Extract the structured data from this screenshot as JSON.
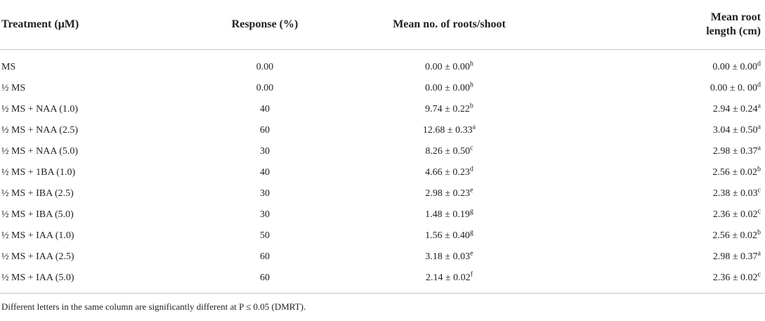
{
  "headers": {
    "treatment": "Treatment (μM)",
    "response": "Response (%)",
    "roots": "Mean no. of roots/shoot",
    "length_line1": "Mean root",
    "length_line2": "length (cm)"
  },
  "rows": [
    {
      "treatment": "MS",
      "response": "0.00",
      "roots": "0.00 ± 0.00",
      "roots_sup": "h",
      "length": "0.00 ± 0.00",
      "length_sup": "d"
    },
    {
      "treatment": "½ MS",
      "response": "0.00",
      "roots": "0.00 ± 0.00",
      "roots_sup": "h",
      "length": "0.00 ± 0. 00",
      "length_sup": "d"
    },
    {
      "treatment": "½ MS + NAA (1.0)",
      "response": "40",
      "roots": "9.74 ± 0.22",
      "roots_sup": "b",
      "length": "2.94 ± 0.24",
      "length_sup": "a"
    },
    {
      "treatment": "½ MS + NAA (2.5)",
      "response": "60",
      "roots": "12.68 ± 0.33",
      "roots_sup": "a",
      "length": "3.04 ± 0.50",
      "length_sup": "a"
    },
    {
      "treatment": "½ MS + NAA (5.0)",
      "response": "30",
      "roots": "8.26 ± 0.50",
      "roots_sup": "c",
      "length": "2.98 ± 0.37",
      "length_sup": "a"
    },
    {
      "treatment": "½ MS + 1BA (1.0)",
      "response": "40",
      "roots": "4.66 ± 0.23",
      "roots_sup": "d",
      "length": "2.56 ± 0.02",
      "length_sup": "b"
    },
    {
      "treatment": "½ MS + IBA (2.5)",
      "response": "30",
      "roots": "2.98 ± 0.23",
      "roots_sup": "e",
      "length": "2.38 ± 0.03",
      "length_sup": "c"
    },
    {
      "treatment": "½ MS + IBA (5.0)",
      "response": "30",
      "roots": "1.48 ± 0.19",
      "roots_sup": "g",
      "length": "2.36 ± 0.02",
      "length_sup": "c"
    },
    {
      "treatment": "½ MS + IAA (1.0)",
      "response": "50",
      "roots": "1.56 ± 0.40",
      "roots_sup": "g",
      "length": "2.56 ± 0.02",
      "length_sup": "b"
    },
    {
      "treatment": "½ MS + IAA (2.5)",
      "response": "60",
      "roots": "3.18 ± 0.03",
      "roots_sup": "e",
      "length": "2.98 ± 0.37",
      "length_sup": "a"
    },
    {
      "treatment": "½ MS + IAA (5.0)",
      "response": "60",
      "roots": "2.14 ± 0.02",
      "roots_sup": "f",
      "length": "2.36 ± 0.02",
      "length_sup": "c"
    }
  ],
  "footnote": "Different letters in the same column are significantly different at P ≤ 0.05 (DMRT)."
}
